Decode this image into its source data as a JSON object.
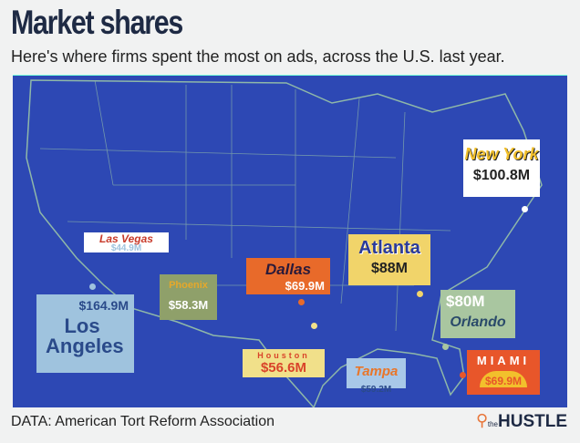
{
  "header": {
    "title": "Market shares",
    "subtitle": "Here's where firms spent the most on ads, across the U.S. last year."
  },
  "cities": [
    {
      "name": "New York",
      "value": "$100.8M",
      "color": "#f2c02c",
      "bg": "#ffffff"
    },
    {
      "name": "Las Vegas",
      "value": "$44.9M",
      "color": "#c83a2a",
      "bg": "#ffffff"
    },
    {
      "name": "Los Angeles",
      "value": "$164.9M",
      "color": "#2a4a8a",
      "bg": "#9fc3de"
    },
    {
      "name": "Phoenix",
      "value": "$58.3M",
      "color": "#e6a82a",
      "bg": "#8fa06a"
    },
    {
      "name": "Dallas",
      "value": "$69.9M",
      "color": "#2a1a3a",
      "bg": "#e86a2a"
    },
    {
      "name": "Atlanta",
      "value": "$88M",
      "color": "#2a3a9a",
      "bg": "#f1d46a"
    },
    {
      "name": "Houston",
      "value": "$56.6M",
      "color": "#d9432a",
      "bg": "#f1e08a"
    },
    {
      "name": "Orlando",
      "value": "$80M",
      "color": "#2a4a6a",
      "bg": "#a9c6a0"
    },
    {
      "name": "Tampa",
      "value": "$59.2M",
      "color": "#e8762a",
      "bg": "#a8c8e8"
    },
    {
      "name": "Miami",
      "value": "$69.9M",
      "color": "#ffffff",
      "bg": "#e8562a"
    }
  ],
  "footer": {
    "source": "DATA: American Tort Reform Association",
    "brand_small": "the",
    "brand": "HUSTLE",
    "hub_icon": "hubspot-icon"
  }
}
